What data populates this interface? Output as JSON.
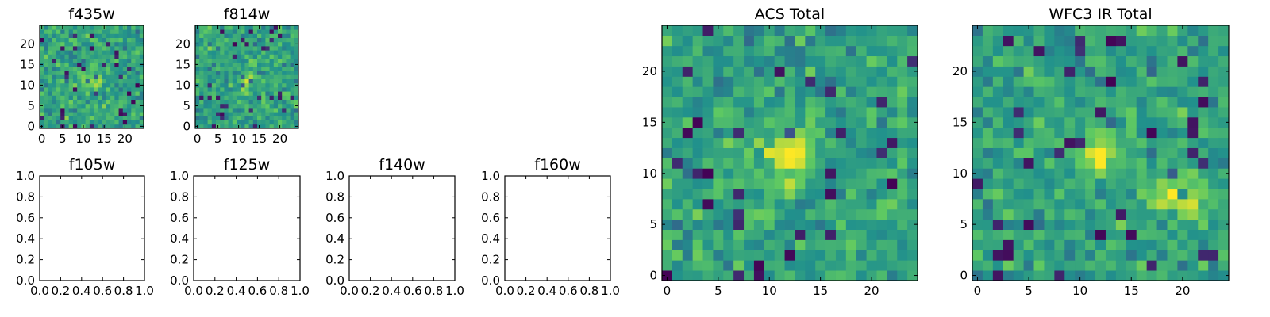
{
  "colors": {
    "frame": "#000000",
    "background": "#ffffff",
    "colormap": [
      "#440154",
      "#3b528b",
      "#21918c",
      "#5ec962",
      "#fde725"
    ]
  },
  "chart_data": [
    {
      "type": "heatmap",
      "title": "f435w",
      "colormap": "viridis",
      "xlim": [
        -0.5,
        24.5
      ],
      "ylim": [
        -0.5,
        24.5
      ],
      "size": [
        25,
        25
      ],
      "xticks": [
        0,
        5,
        10,
        15,
        20
      ],
      "yticks": [
        0,
        5,
        10,
        15,
        20
      ],
      "xtick_labels": [
        "0",
        "5",
        "10",
        "15",
        "20"
      ],
      "ytick_labels": [
        "0",
        "5",
        "10",
        "15",
        "20"
      ],
      "pattern": "noise with faint bright source near (12, 11)",
      "seed": 11
    },
    {
      "type": "heatmap",
      "title": "f814w",
      "colormap": "viridis",
      "xlim": [
        -0.5,
        24.5
      ],
      "ylim": [
        -0.5,
        24.5
      ],
      "size": [
        25,
        25
      ],
      "xticks": [
        0,
        5,
        10,
        15,
        20
      ],
      "yticks": [
        0,
        5,
        10,
        15,
        20
      ],
      "xtick_labels": [
        "0",
        "5",
        "10",
        "15",
        "20"
      ],
      "ytick_labels": [
        "0",
        "5",
        "10",
        "15",
        "20"
      ],
      "pattern": "noise with faint bright source near (12, 11)",
      "seed": 23
    },
    {
      "type": "empty",
      "title": "f105w",
      "xlim": [
        0,
        1
      ],
      "ylim": [
        0,
        1
      ],
      "xtick_labels": [
        "0.0",
        "0.2",
        "0.4",
        "0.6",
        "0.8",
        "1.0"
      ],
      "ytick_labels": [
        "0.0",
        "0.2",
        "0.4",
        "0.6",
        "0.8",
        "1.0"
      ]
    },
    {
      "type": "empty",
      "title": "f125w",
      "xlim": [
        0,
        1
      ],
      "ylim": [
        0,
        1
      ],
      "xtick_labels": [
        "0.0",
        "0.2",
        "0.4",
        "0.6",
        "0.8",
        "1.0"
      ],
      "ytick_labels": [
        "0.0",
        "0.2",
        "0.4",
        "0.6",
        "0.8",
        "1.0"
      ]
    },
    {
      "type": "empty",
      "title": "f140w",
      "xlim": [
        0,
        1
      ],
      "ylim": [
        0,
        1
      ],
      "xtick_labels": [
        "0.0",
        "0.2",
        "0.4",
        "0.6",
        "0.8",
        "1.0"
      ],
      "ytick_labels": [
        "0.0",
        "0.2",
        "0.4",
        "0.6",
        "0.8",
        "1.0"
      ]
    },
    {
      "type": "empty",
      "title": "f160w",
      "xlim": [
        0,
        1
      ],
      "ylim": [
        0,
        1
      ],
      "xtick_labels": [
        "0.0",
        "0.2",
        "0.4",
        "0.6",
        "0.8",
        "1.0"
      ],
      "ytick_labels": [
        "0.0",
        "0.2",
        "0.4",
        "0.6",
        "0.8",
        "1.0"
      ]
    },
    {
      "type": "heatmap",
      "title": "ACS Total",
      "colormap": "viridis",
      "xlim": [
        -0.5,
        24.5
      ],
      "ylim": [
        -0.5,
        24.5
      ],
      "size": [
        25,
        25
      ],
      "xticks": [
        0,
        5,
        10,
        15,
        20
      ],
      "yticks": [
        0,
        5,
        10,
        15,
        20
      ],
      "xtick_labels": [
        "0",
        "5",
        "10",
        "15",
        "20"
      ],
      "ytick_labels": [
        "0",
        "5",
        "10",
        "15",
        "20"
      ],
      "pattern": "noise with bright source near (12, 12)",
      "seed": 37
    },
    {
      "type": "heatmap",
      "title": "WFC3 IR Total",
      "colormap": "viridis",
      "xlim": [
        -0.5,
        24.5
      ],
      "ylim": [
        -0.5,
        24.5
      ],
      "size": [
        25,
        25
      ],
      "xticks": [
        0,
        5,
        10,
        15,
        20
      ],
      "yticks": [
        0,
        5,
        10,
        15,
        20
      ],
      "xtick_labels": [
        "0",
        "5",
        "10",
        "15",
        "20"
      ],
      "ytick_labels": [
        "0",
        "5",
        "10",
        "15",
        "20"
      ],
      "pattern": "noise with bright sources near (12, 12) and (20, 8)",
      "seed": 53
    }
  ]
}
